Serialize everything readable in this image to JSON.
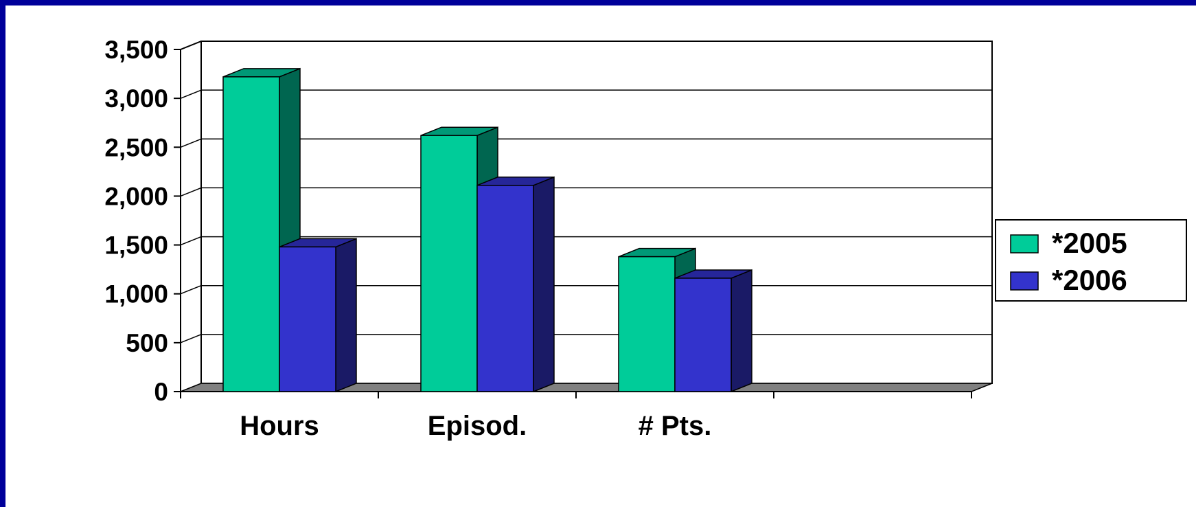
{
  "chart_data": {
    "type": "bar",
    "style": "3d-clustered",
    "categories": [
      "Hours",
      "Episod.",
      "# Pts.",
      ""
    ],
    "series": [
      {
        "name": "*2005",
        "values": [
          3220,
          2620,
          1380,
          null
        ],
        "color": "#00cc99",
        "side_color": "#006650",
        "top_color": "#009977"
      },
      {
        "name": "*2006",
        "values": [
          1480,
          2110,
          1160,
          null
        ],
        "color": "#3333cc",
        "side_color": "#1a1a66",
        "top_color": "#262699"
      }
    ],
    "yticks": [
      "0",
      "500",
      "1,000",
      "1,500",
      "2,000",
      "2,500",
      "3,000",
      "3,500"
    ],
    "ylim": [
      0,
      3500
    ],
    "title": "",
    "xlabel": "",
    "ylabel": "",
    "grid": true,
    "legend_position": "right",
    "colors": {
      "background": "#00009a",
      "floor": "#808080",
      "grid": "#000000"
    }
  }
}
